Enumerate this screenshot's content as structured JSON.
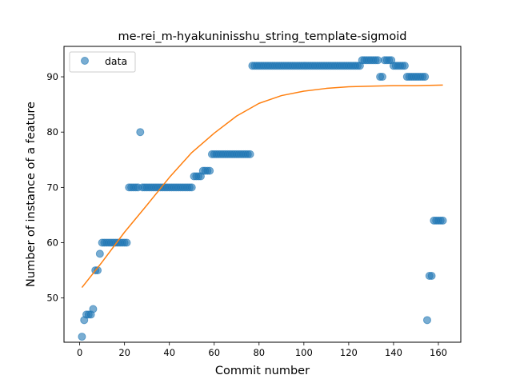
{
  "chart_data": {
    "type": "scatter",
    "title": "me-rei_m-hyakuninisshu_string_template-sigmoid",
    "xlabel": "Commit number",
    "ylabel": "Number of instance of a feature",
    "xlim": [
      -7,
      170
    ],
    "ylim": [
      42,
      95.5
    ],
    "xticks": [
      0,
      20,
      40,
      60,
      80,
      100,
      120,
      140,
      160
    ],
    "yticks": [
      50,
      60,
      70,
      80,
      90
    ],
    "legend": {
      "position": "top-left",
      "entries": [
        "data"
      ]
    },
    "colors": {
      "points": "#1f77b4",
      "fit": "#ff7f0e"
    },
    "grid": false,
    "series": [
      {
        "name": "data",
        "kind": "scatter",
        "runs": [
          [
            1,
            1,
            43
          ],
          [
            2,
            2,
            46
          ],
          [
            3,
            5,
            47
          ],
          [
            6,
            6,
            48
          ],
          [
            7,
            8,
            55
          ],
          [
            9,
            9,
            58
          ],
          [
            10,
            21,
            60
          ],
          [
            22,
            26,
            70
          ],
          [
            27,
            27,
            80
          ],
          [
            28,
            50,
            70
          ],
          [
            51,
            54,
            72
          ],
          [
            55,
            58,
            73
          ],
          [
            59,
            76,
            76
          ],
          [
            77,
            125,
            92
          ],
          [
            126,
            133,
            93
          ],
          [
            134,
            135,
            90
          ],
          [
            136,
            139,
            93
          ],
          [
            140,
            145,
            92
          ],
          [
            146,
            154,
            90
          ],
          [
            155,
            155,
            46
          ],
          [
            156,
            157,
            54
          ],
          [
            158,
            162,
            64
          ]
        ]
      },
      {
        "name": "",
        "kind": "line",
        "x": [
          1,
          10,
          20,
          30,
          40,
          50,
          60,
          70,
          80,
          90,
          100,
          110,
          120,
          130,
          140,
          150,
          162
        ],
        "y": [
          51.9,
          56.5,
          61.9,
          66.8,
          71.8,
          76.3,
          79.8,
          82.9,
          85.2,
          86.6,
          87.4,
          87.9,
          88.2,
          88.3,
          88.4,
          88.4,
          88.5
        ]
      }
    ]
  }
}
